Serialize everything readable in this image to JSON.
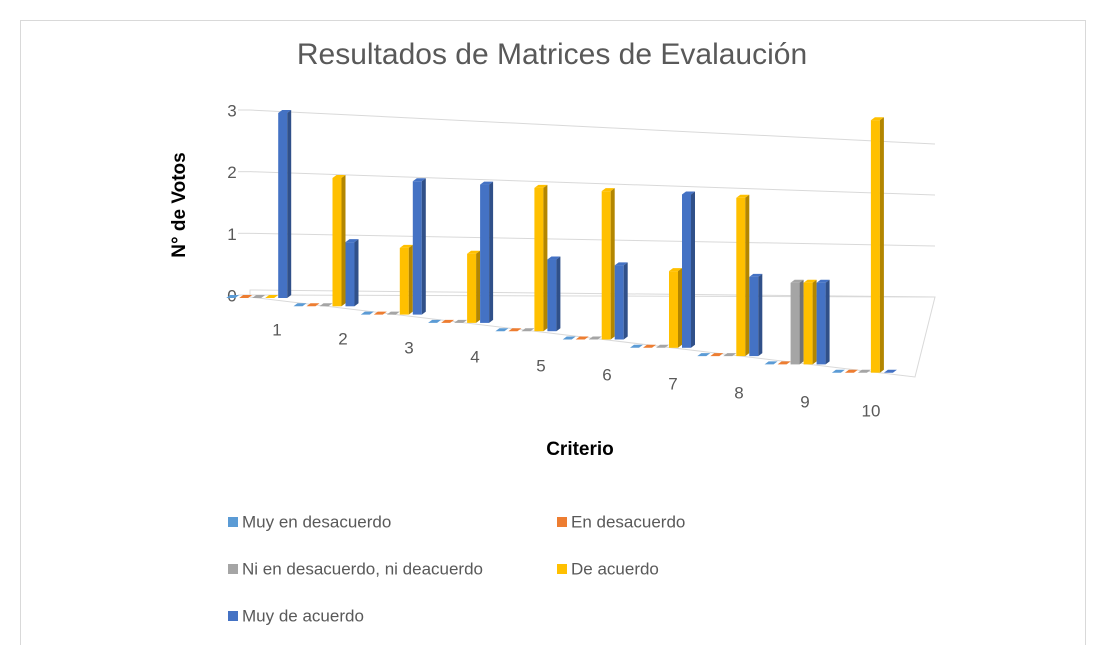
{
  "chart_data": {
    "type": "bar3d",
    "title": "Resultados de Matrices de Evalaución",
    "xlabel": "Criterio",
    "ylabel": "N° de Votos",
    "categories": [
      "1",
      "2",
      "3",
      "4",
      "5",
      "6",
      "7",
      "8",
      "9",
      "10"
    ],
    "series": [
      {
        "name": "Muy en desacuerdo",
        "color": "#5b9bd5",
        "values": [
          0,
          0,
          0,
          0,
          0,
          0,
          0,
          0,
          0,
          0
        ]
      },
      {
        "name": "En desacuerdo",
        "color": "#ed7d31",
        "values": [
          0,
          0,
          0,
          0,
          0,
          0,
          0,
          0,
          0,
          0
        ]
      },
      {
        "name": "Ni en desacuerdo, ni deacuerdo",
        "color": "#a5a5a5",
        "values": [
          0,
          0,
          0,
          0,
          0,
          0,
          0,
          0,
          1,
          0
        ]
      },
      {
        "name": "De acuerdo",
        "color": "#ffc000",
        "values": [
          0,
          2,
          1,
          1,
          2,
          2,
          1,
          2,
          1,
          3
        ]
      },
      {
        "name": "Muy de acuerdo",
        "color": "#4472c4",
        "values": [
          3,
          1,
          2,
          2,
          1,
          1,
          2,
          1,
          1,
          0
        ]
      }
    ],
    "ylim": [
      0,
      3
    ],
    "yticks": [
      0,
      1,
      2,
      3
    ],
    "grid": true,
    "legend": "bottom"
  }
}
